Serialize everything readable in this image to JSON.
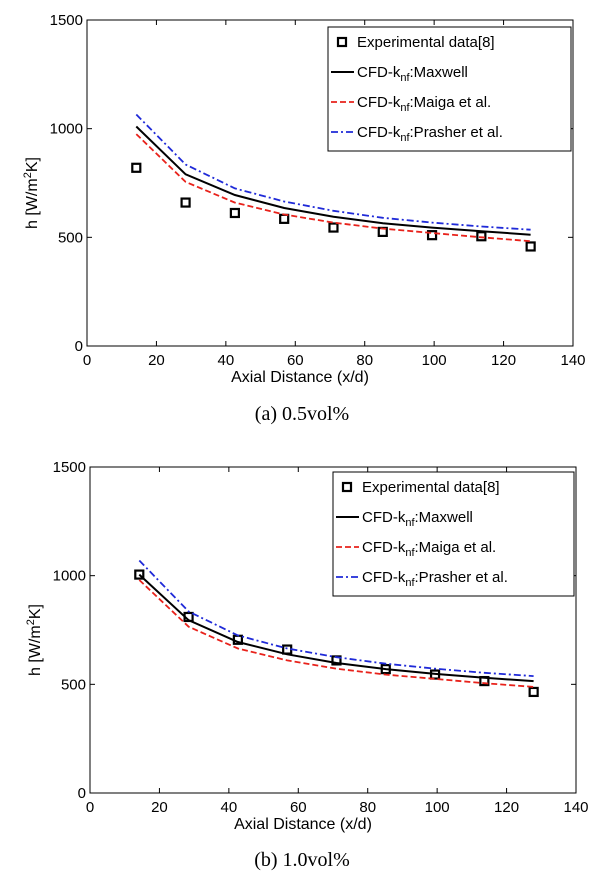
{
  "chart_data": [
    {
      "type": "line",
      "caption": "(a)  0.5vol%",
      "xlabel": "Axial Distance (x/d)",
      "ylabel": "h [W/m²K]",
      "xlim": [
        0,
        140
      ],
      "ylim": [
        0,
        1500
      ],
      "xticks": [
        0,
        20,
        40,
        60,
        80,
        100,
        120,
        140
      ],
      "yticks": [
        0,
        500,
        1000,
        1500
      ],
      "grid": false,
      "legend_position": "top-right",
      "series": [
        {
          "name": "Experimental data[8]",
          "style": "markers",
          "color": "#000000",
          "x": [
            14.2,
            28.4,
            42.6,
            56.8,
            71,
            85.2,
            99.4,
            113.6,
            127.8
          ],
          "y": [
            820,
            660,
            612,
            585,
            545,
            525,
            510,
            505,
            458
          ]
        },
        {
          "name": "CFD-k_nf:Maxwell",
          "style": "solid",
          "color": "#000000",
          "x": [
            14.2,
            28.4,
            42.6,
            56.8,
            71,
            85.2,
            99.4,
            113.6,
            127.8
          ],
          "y": [
            1010,
            790,
            695,
            635,
            595,
            565,
            545,
            528,
            512
          ]
        },
        {
          "name": "CFD-k_nf:Maiga et al.",
          "style": "dashed",
          "color": "#e8221b",
          "x": [
            14.2,
            28.4,
            42.6,
            56.8,
            71,
            85.2,
            99.4,
            113.6,
            127.8
          ],
          "y": [
            975,
            755,
            660,
            605,
            568,
            540,
            520,
            500,
            482
          ]
        },
        {
          "name": "CFD-k_nf:Prasher et al.",
          "style": "dashdot",
          "color": "#1f2ad8",
          "x": [
            14.2,
            28.4,
            42.6,
            56.8,
            71,
            85.2,
            99.4,
            113.6,
            127.8
          ],
          "y": [
            1065,
            835,
            725,
            665,
            622,
            590,
            568,
            550,
            535
          ]
        }
      ]
    },
    {
      "type": "line",
      "caption": "(b)  1.0vol%",
      "xlabel": "Axial Distance (x/d)",
      "ylabel": "h [W/m²K]",
      "xlim": [
        0,
        140
      ],
      "ylim": [
        0,
        1500
      ],
      "xticks": [
        0,
        20,
        40,
        60,
        80,
        100,
        120,
        140
      ],
      "yticks": [
        0,
        500,
        1000,
        1500
      ],
      "grid": false,
      "legend_position": "top-right",
      "series": [
        {
          "name": "Experimental data[8]",
          "style": "markers",
          "color": "#000000",
          "x": [
            14.2,
            28.4,
            42.6,
            56.8,
            71,
            85.2,
            99.4,
            113.6,
            127.8
          ],
          "y": [
            1005,
            810,
            705,
            660,
            610,
            570,
            545,
            515,
            465
          ]
        },
        {
          "name": "CFD-k_nf:Maxwell",
          "style": "solid",
          "color": "#000000",
          "x": [
            14.2,
            28.4,
            42.6,
            56.8,
            71,
            85.2,
            99.4,
            113.6,
            127.8
          ],
          "y": [
            1005,
            795,
            695,
            638,
            598,
            570,
            548,
            530,
            515
          ]
        },
        {
          "name": "CFD-k_nf:Maiga et al.",
          "style": "dashed",
          "color": "#e8221b",
          "x": [
            14.2,
            28.4,
            42.6,
            56.8,
            71,
            85.2,
            99.4,
            113.6,
            127.8
          ],
          "y": [
            980,
            765,
            665,
            610,
            572,
            545,
            525,
            505,
            488
          ]
        },
        {
          "name": "CFD-k_nf:Prasher et al.",
          "style": "dashdot",
          "color": "#1f2ad8",
          "x": [
            14.2,
            28.4,
            42.6,
            56.8,
            71,
            85.2,
            99.4,
            113.6,
            127.8
          ],
          "y": [
            1070,
            835,
            725,
            665,
            625,
            595,
            572,
            553,
            538
          ]
        }
      ]
    }
  ]
}
